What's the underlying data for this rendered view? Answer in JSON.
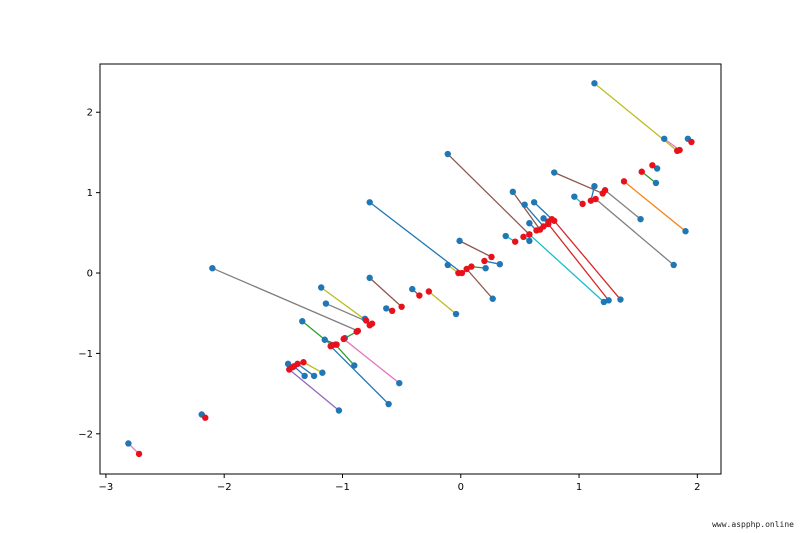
{
  "watermark": "www.aspphp.online",
  "chart_data": {
    "type": "scatter",
    "title": "",
    "xlabel": "",
    "ylabel": "",
    "xlim": [
      -3.05,
      2.2
    ],
    "ylim": [
      -2.5,
      2.6
    ],
    "xticks": [
      -3,
      -2,
      -1,
      0,
      1,
      2
    ],
    "yticks": [
      -2,
      -1,
      0,
      1,
      2
    ],
    "xtick_labels": [
      "−3",
      "−2",
      "−1",
      "0",
      "1",
      "2"
    ],
    "ytick_labels": [
      "−2",
      "−1",
      "0",
      "1",
      "2"
    ],
    "grid": false,
    "colors": {
      "original_points": "#1f77b4",
      "projected_points": "#e8111b"
    },
    "segments": [
      {
        "color": "#bcbd22",
        "original": [
          1.13,
          2.36
        ],
        "projected": [
          1.83,
          1.52
        ]
      },
      {
        "color": "#e377c2",
        "original": [
          1.72,
          1.67
        ],
        "projected": [
          1.85,
          1.53
        ]
      },
      {
        "color": "#8c564b",
        "original": [
          1.92,
          1.67
        ],
        "projected": [
          1.95,
          1.63
        ]
      },
      {
        "color": "#2ca02c",
        "original": [
          1.65,
          1.12
        ],
        "projected": [
          1.53,
          1.26
        ]
      },
      {
        "color": "#bcbd22",
        "original": [
          1.66,
          1.3
        ],
        "projected": [
          1.62,
          1.34
        ]
      },
      {
        "color": "#ff7f0e",
        "original": [
          1.9,
          0.52
        ],
        "projected": [
          1.38,
          1.14
        ]
      },
      {
        "color": "#7f7f7f",
        "original": [
          1.8,
          0.1
        ],
        "projected": [
          1.14,
          0.92
        ]
      },
      {
        "color": "#7f7f7f",
        "original": [
          1.52,
          0.67
        ],
        "projected": [
          1.22,
          1.03
        ]
      },
      {
        "color": "#1f77b4",
        "original": [
          1.13,
          1.08
        ],
        "projected": [
          1.1,
          0.9
        ]
      },
      {
        "color": "#17becf",
        "original": [
          0.96,
          0.95
        ],
        "projected": [
          1.03,
          0.86
        ]
      },
      {
        "color": "#8c564b",
        "original": [
          0.79,
          1.25
        ],
        "projected": [
          1.2,
          0.99
        ]
      },
      {
        "color": "#d62728",
        "original": [
          1.35,
          -0.33
        ],
        "projected": [
          0.79,
          0.65
        ]
      },
      {
        "color": "#d62728",
        "original": [
          1.25,
          -0.34
        ],
        "projected": [
          0.74,
          0.61
        ]
      },
      {
        "color": "#17becf",
        "original": [
          1.21,
          -0.36
        ],
        "projected": [
          0.58,
          0.48
        ]
      },
      {
        "color": "#1f77b4",
        "original": [
          0.62,
          0.88
        ],
        "projected": [
          0.77,
          0.67
        ]
      },
      {
        "color": "#1f77b4",
        "original": [
          0.54,
          0.85
        ],
        "projected": [
          0.7,
          0.58
        ]
      },
      {
        "color": "#9467bd",
        "original": [
          0.7,
          0.68
        ],
        "projected": [
          0.74,
          0.64
        ]
      },
      {
        "color": "#8c564b",
        "original": [
          0.44,
          1.01
        ],
        "projected": [
          0.67,
          0.54
        ]
      },
      {
        "color": "#1f77b4",
        "original": [
          0.58,
          0.62
        ],
        "projected": [
          0.64,
          0.53
        ]
      },
      {
        "color": "#17becf",
        "original": [
          0.58,
          0.4
        ],
        "projected": [
          0.53,
          0.45
        ]
      },
      {
        "color": "#8c564b",
        "original": [
          -0.11,
          1.48
        ],
        "projected": [
          0.58,
          0.48
        ]
      },
      {
        "color": "#17becf",
        "original": [
          0.38,
          0.46
        ],
        "projected": [
          0.46,
          0.39
        ]
      },
      {
        "color": "#8c564b",
        "original": [
          -0.01,
          0.4
        ],
        "projected": [
          0.26,
          0.2
        ]
      },
      {
        "color": "#1f77b4",
        "original": [
          0.33,
          0.11
        ],
        "projected": [
          0.2,
          0.15
        ]
      },
      {
        "color": "#8c564b",
        "original": [
          0.27,
          -0.32
        ],
        "projected": [
          0.05,
          0.05
        ]
      },
      {
        "color": "#1f77b4",
        "original": [
          -0.77,
          0.88
        ],
        "projected": [
          0.01,
          0.0
        ]
      },
      {
        "color": "#2ca02c",
        "original": [
          0.21,
          0.06
        ],
        "projected": [
          0.09,
          0.08
        ]
      },
      {
        "color": "#bcbd22",
        "original": [
          -0.11,
          0.1
        ],
        "projected": [
          -0.02,
          0.0
        ]
      },
      {
        "color": "#bcbd22",
        "original": [
          -0.04,
          -0.51
        ],
        "projected": [
          -0.27,
          -0.23
        ]
      },
      {
        "color": "#8c564b",
        "original": [
          -0.41,
          -0.2
        ],
        "projected": [
          -0.35,
          -0.28
        ]
      },
      {
        "color": "#8c564b",
        "original": [
          -0.77,
          -0.06
        ],
        "projected": [
          -0.5,
          -0.42
        ]
      },
      {
        "color": "#1f77b4",
        "original": [
          -0.63,
          -0.44
        ],
        "projected": [
          -0.58,
          -0.47
        ]
      },
      {
        "color": "#bcbd22",
        "original": [
          -1.18,
          -0.18
        ],
        "projected": [
          -0.8,
          -0.59
        ]
      },
      {
        "color": "#7f7f7f",
        "original": [
          -1.14,
          -0.38
        ],
        "projected": [
          -0.75,
          -0.63
        ]
      },
      {
        "color": "#1f77b4",
        "original": [
          -0.81,
          -0.57
        ],
        "projected": [
          -0.77,
          -0.65
        ]
      },
      {
        "color": "#e377c2",
        "original": [
          -0.52,
          -1.37
        ],
        "projected": [
          -0.99,
          -0.82
        ]
      },
      {
        "color": "#7f7f7f",
        "original": [
          -2.1,
          0.06
        ],
        "projected": [
          -0.87,
          -0.72
        ]
      },
      {
        "color": "#2ca02c",
        "original": [
          -0.98,
          -0.81
        ],
        "projected": [
          -0.88,
          -0.73
        ]
      },
      {
        "color": "#1f77b4",
        "original": [
          -0.61,
          -1.63
        ],
        "projected": [
          -1.1,
          -0.91
        ]
      },
      {
        "color": "#2ca02c",
        "original": [
          -1.34,
          -0.6
        ],
        "projected": [
          -1.09,
          -0.9
        ]
      },
      {
        "color": "#2ca02c",
        "original": [
          -0.9,
          -1.15
        ],
        "projected": [
          -1.06,
          -0.89
        ]
      },
      {
        "color": "#1f77b4",
        "original": [
          -1.15,
          -0.83
        ],
        "projected": [
          -1.05,
          -0.89
        ]
      },
      {
        "color": "#9467bd",
        "original": [
          -1.03,
          -1.71
        ],
        "projected": [
          -1.45,
          -1.2
        ]
      },
      {
        "color": "#bcbd22",
        "original": [
          -1.17,
          -1.24
        ],
        "projected": [
          -1.33,
          -1.11
        ]
      },
      {
        "color": "#1f77b4",
        "original": [
          -1.24,
          -1.28
        ],
        "projected": [
          -1.38,
          -1.13
        ]
      },
      {
        "color": "#1f77b4",
        "original": [
          -1.32,
          -1.28
        ],
        "projected": [
          -1.41,
          -1.16
        ]
      },
      {
        "color": "#8c564b",
        "original": [
          -1.46,
          -1.13
        ],
        "projected": [
          -1.42,
          -1.17
        ]
      },
      {
        "color": "#e377c2",
        "original": [
          -2.19,
          -1.76
        ],
        "projected": [
          -2.16,
          -1.8
        ]
      },
      {
        "color": "#e377c2",
        "original": [
          -2.81,
          -2.12
        ],
        "projected": [
          -2.72,
          -2.25
        ]
      }
    ]
  }
}
